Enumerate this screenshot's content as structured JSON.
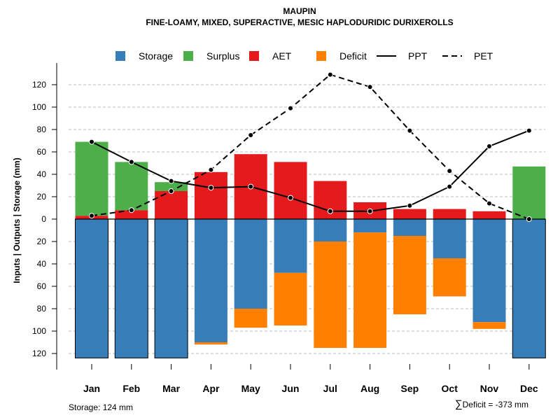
{
  "chart_data": {
    "type": "bar",
    "title": "MAUPIN",
    "subtitle": "FINE-LOAMY, MIXED, SUPERACTIVE, MESIC HAPLODURIDIC DURIXEROLLS",
    "ylabel": "Inputs | Outputs | Storage    (mm)",
    "xlabel": "",
    "ylim": [
      -124,
      130
    ],
    "yticks": [
      120,
      100,
      80,
      60,
      40,
      20,
      0,
      -20,
      -40,
      -60,
      -80,
      -100,
      -120
    ],
    "ytick_labels": [
      "120",
      "100",
      "80",
      "60",
      "40",
      "20",
      "0",
      "20",
      "40",
      "60",
      "80",
      "100",
      "120"
    ],
    "grid": true,
    "categories": [
      "Jan",
      "Feb",
      "Mar",
      "Apr",
      "May",
      "Jun",
      "Jul",
      "Aug",
      "Sep",
      "Oct",
      "Nov",
      "Dec"
    ],
    "legend": [
      {
        "label": "Storage",
        "color": "#377EB8",
        "kind": "box"
      },
      {
        "label": "Surplus",
        "color": "#4DAF4A",
        "kind": "box"
      },
      {
        "label": "AET",
        "color": "#E41A1C",
        "kind": "box"
      },
      {
        "label": "Deficit",
        "color": "#FF7F00",
        "kind": "box"
      },
      {
        "label": "PPT",
        "color": "#000000",
        "kind": "solid"
      },
      {
        "label": "PET",
        "color": "#000000",
        "kind": "dashed"
      }
    ],
    "series": [
      {
        "name": "AET",
        "color": "#E41A1C",
        "values": [
          3,
          8,
          25,
          42,
          58,
          51,
          34,
          15,
          9,
          9,
          7,
          0
        ]
      },
      {
        "name": "Surplus",
        "color": "#4DAF4A",
        "values": [
          66,
          43,
          8,
          0,
          0,
          0,
          0,
          0,
          0,
          0,
          0,
          47
        ]
      },
      {
        "name": "Storage",
        "color": "#377EB8",
        "values": [
          124,
          124,
          124,
          110,
          80,
          48,
          20,
          12,
          15,
          35,
          92,
          124
        ]
      },
      {
        "name": "Deficit",
        "color": "#FF7F00",
        "values": [
          0,
          0,
          0,
          2,
          17,
          47,
          95,
          103,
          70,
          34,
          6,
          0
        ]
      },
      {
        "name": "PPT",
        "color": "#000000",
        "values": [
          69,
          51,
          34,
          28,
          29,
          19,
          7,
          7,
          12,
          29,
          65,
          79
        ]
      },
      {
        "name": "PET",
        "color": "#000000",
        "values": [
          3,
          8,
          25,
          44,
          75,
          99,
          129,
          118,
          79,
          43,
          14,
          0
        ]
      }
    ]
  },
  "footer": {
    "storage_text": "Storage: 124 mm",
    "deficit_symbol": "∑",
    "deficit_text": "Deficit = -373 mm"
  }
}
